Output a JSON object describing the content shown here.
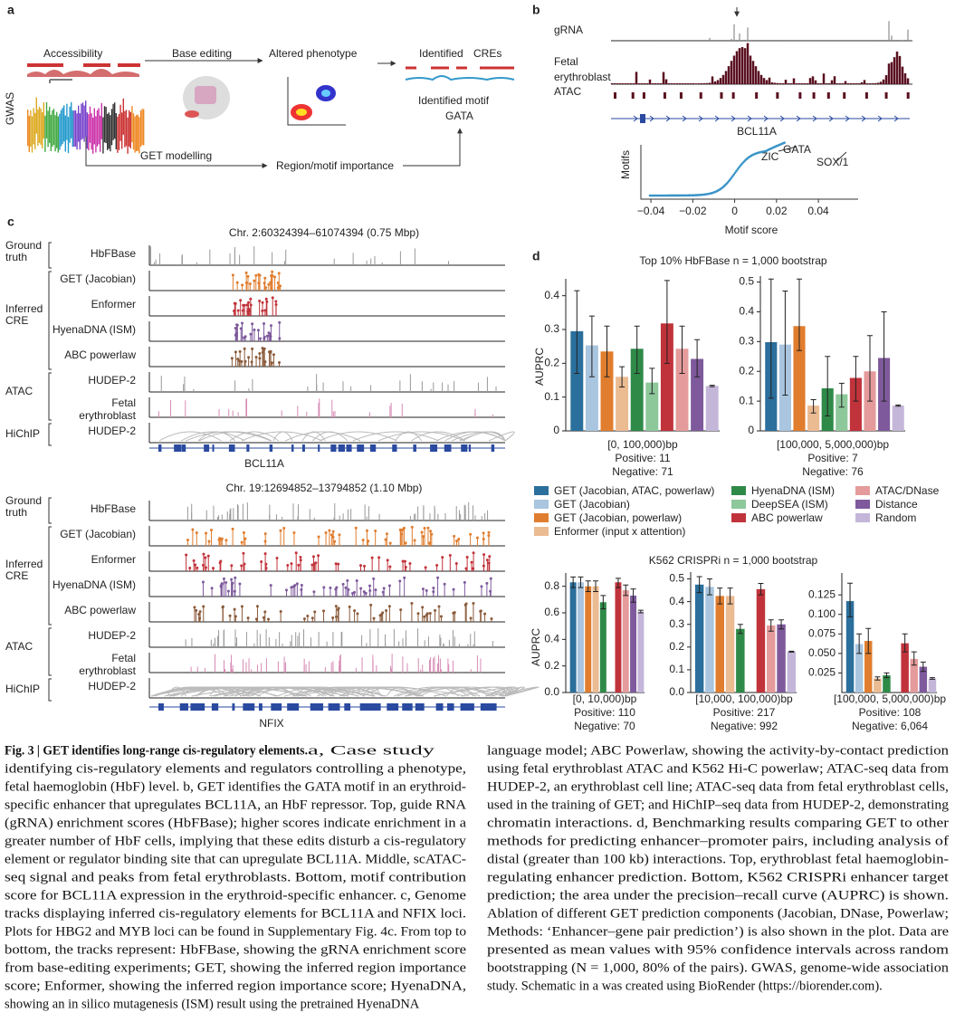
{
  "panel_a": {
    "letter": "a",
    "accessibility": "Accessibility",
    "base_editing": "Base editing",
    "altered_phenotype": "Altered phenotype",
    "identified": "Identified",
    "cres": "CREs",
    "gwas": "GWAS",
    "identified_motif": "Identified motif",
    "gata": "GATA",
    "get_modelling": "GET modelling",
    "region_motif": "Region/motif importance"
  },
  "panel_b": {
    "letter": "b",
    "grna": "gRNA",
    "fetal": "Fetal",
    "erythroblast": "erythroblast",
    "atac": "ATAC",
    "gene": "BCL11A",
    "y_label": "Motifs",
    "x_label": "Motif score",
    "zic": "ZIC",
    "gata": "GATA",
    "sox": "SOX/1",
    "xlim": [
      -0.0448,
      0.059
    ],
    "xticks": [
      {
        "value": -0.04,
        "label": "−0.04"
      },
      {
        "value": -0.02,
        "label": "−0.02"
      },
      0,
      0.02,
      0.04
    ]
  },
  "panel_c": {
    "letter": "c",
    "groups": [
      [
        "Ground",
        "truth"
      ],
      [
        "Inferred",
        "CRE"
      ],
      [
        "ATAC"
      ],
      [
        "HiChIP"
      ]
    ],
    "tracks": [
      "HbFBase",
      "GET (Jacobian)",
      "Enformer",
      "HyenaDNA (ISM)",
      "ABC powerlaw",
      "HUDEP-2",
      [
        "Fetal",
        "erythroblast"
      ],
      "HUDEP-2"
    ],
    "loci": [
      {
        "title": "Chr. 2:60324394–61074394 (0.75 Mbp)",
        "gene": "BCL11A"
      },
      {
        "title": "Chr. 19:12694852–13794852 (1.10 Mbp)",
        "gene": "NFIX"
      }
    ]
  },
  "panel_d": {
    "letter": "d",
    "top_title": "Top 10% HbFBase n = 1,000 bootstrap",
    "bottom_title": "K562 CRISPRi n = 1,000 bootstrap",
    "y_label": "AUPRC",
    "legend": [
      {
        "name": "GET (Jacobian, ATAC, powerlaw)",
        "color": "#2b6f9c"
      },
      {
        "name": "GET (Jacobian)",
        "color": "#a9c5df"
      },
      {
        "name": "GET (Jacobian, powerlaw)",
        "color": "#e07d2e"
      },
      {
        "name": "Enformer (input x attention)",
        "color": "#ebbb92"
      },
      {
        "name": "HyenaDNA (ISM)",
        "color": "#2f8a48"
      },
      {
        "name": "DeepSEA (ISM)",
        "color": "#8dc89b"
      },
      {
        "name": "ABC powerlaw",
        "color": "#c1333b"
      },
      {
        "name": "ATAC/DNase",
        "color": "#e59b9b"
      },
      {
        "name": "Distance",
        "color": "#7e5a9c"
      },
      {
        "name": "Random",
        "color": "#c4b6d9"
      }
    ],
    "charts": [
      {
        "type": "bar",
        "x_label": [
          "[0, 100,000)bp",
          "Positive: 11",
          "Negative: 71"
        ],
        "ylim": [
          0,
          0.45
        ],
        "yticks": [
          0,
          0.1,
          0.2,
          0.3,
          0.4
        ],
        "values": [
          0.295,
          0.253,
          0.235,
          0.16,
          0.243,
          0.143,
          0.318,
          0.243,
          0.213,
          0.133
        ],
        "ci": [
          [
            0.17,
            0.415
          ],
          [
            0.16,
            0.34
          ],
          [
            0.16,
            0.31
          ],
          [
            0.13,
            0.19
          ],
          [
            0.17,
            0.31
          ],
          [
            0.11,
            0.185
          ],
          [
            0.2,
            0.445
          ],
          [
            0.17,
            0.31
          ],
          [
            0.16,
            0.27
          ],
          [
            0.131,
            0.135
          ]
        ]
      },
      {
        "type": "bar",
        "x_label": [
          "[100,000, 5,000,000)bp",
          "Positive: 7",
          "Negative: 76"
        ],
        "ylim": [
          0,
          0.52
        ],
        "yticks": [
          0,
          0.1,
          0.2,
          0.3,
          0.4,
          0.5
        ],
        "values": [
          0.298,
          0.29,
          0.352,
          0.085,
          0.143,
          0.123,
          0.178,
          0.2,
          0.245,
          0.085
        ],
        "ci": [
          [
            0.11,
            0.51
          ],
          [
            0.12,
            0.47
          ],
          [
            0.27,
            0.51
          ],
          [
            0.06,
            0.105
          ],
          [
            0.05,
            0.25
          ],
          [
            0.08,
            0.16
          ],
          [
            0.1,
            0.25
          ],
          [
            0.1,
            0.32
          ],
          [
            0.1,
            0.4
          ],
          [
            0.083,
            0.087
          ]
        ]
      },
      {
        "type": "bar",
        "x_label": [
          "[0, 10,000)bp",
          "Positive: 110",
          "Negative: 70"
        ],
        "ylim": [
          0,
          0.9
        ],
        "yticks": [
          {
            "value": 0,
            "label": "0.0"
          },
          0.2,
          0.4,
          0.6,
          0.8
        ],
        "values": [
          0.83,
          0.83,
          0.8,
          0.8,
          0.68,
          null,
          0.83,
          0.77,
          0.73,
          0.61
        ],
        "ci": [
          [
            0.79,
            0.87
          ],
          [
            0.79,
            0.87
          ],
          [
            0.76,
            0.84
          ],
          [
            0.76,
            0.84
          ],
          [
            0.63,
            0.73
          ],
          null,
          [
            0.79,
            0.86
          ],
          [
            0.73,
            0.81
          ],
          [
            0.68,
            0.78
          ],
          [
            0.6,
            0.62
          ]
        ]
      },
      {
        "type": "bar",
        "x_label": [
          "[10,000, 100,000)bp",
          "Positive: 217",
          "Negative: 992"
        ],
        "ylim": [
          0,
          0.53
        ],
        "yticks": [
          {
            "value": 0,
            "label": "0.0"
          },
          0.1,
          0.2,
          0.3,
          0.4,
          0.5
        ],
        "values": [
          0.475,
          0.465,
          0.425,
          0.425,
          0.28,
          null,
          0.455,
          0.295,
          0.3,
          0.18
        ],
        "ci": [
          [
            0.44,
            0.51
          ],
          [
            0.43,
            0.5
          ],
          [
            0.39,
            0.46
          ],
          [
            0.39,
            0.46
          ],
          [
            0.26,
            0.3
          ],
          null,
          [
            0.43,
            0.48
          ],
          [
            0.27,
            0.32
          ],
          [
            0.28,
            0.32
          ],
          [
            0.178,
            0.182
          ]
        ]
      },
      {
        "type": "bar",
        "x_label": [
          "[100,000, 5,000,000)bp",
          "Positive: 108",
          "Negative: 6,064"
        ],
        "ylim": [
          0,
          0.153
        ],
        "yticks": [
          0.025,
          {
            "value": 0.05,
            "label": "0.050"
          },
          0.075,
          {
            "value": 0.1,
            "label": "0.100"
          },
          0.125
        ],
        "values": [
          0.117,
          0.062,
          0.066,
          0.018,
          0.022,
          null,
          0.063,
          0.043,
          0.033,
          0.018
        ],
        "ci": [
          [
            0.097,
            0.14
          ],
          [
            0.05,
            0.075
          ],
          [
            0.05,
            0.082
          ],
          [
            0.016,
            0.02
          ],
          [
            0.019,
            0.025
          ],
          null,
          [
            0.052,
            0.075
          ],
          [
            0.035,
            0.052
          ],
          [
            0.027,
            0.039
          ],
          [
            0.017,
            0.019
          ]
        ]
      }
    ]
  },
  "caption": {
    "title": "Fig. 3 | GET identifies long-range cis-regulatory elements.",
    "left": [
      " a, Case study",
      "identifying cis-regulatory elements and regulators controlling a phenotype,",
      "fetal haemoglobin (HbF) level. b, GET identifies the GATA motif in an erythroid-",
      "specific enhancer that upregulates BCL11A, an HbF repressor. Top, guide RNA",
      "(gRNA) enrichment scores (HbFBase); higher scores indicate enrichment in a",
      "greater number of HbF cells, implying that these edits disturb a cis-regulatory",
      "element or regulator binding site that can upregulate BCL11A. Middle, scATAC-",
      "seq signal and peaks from fetal erythroblasts. Bottom, motif contribution",
      "score for BCL11A expression in the erythroid-specific enhancer. c, Genome",
      "tracks displaying inferred cis-regulatory elements for BCL11A and NFIX loci.",
      "Plots for HBG2 and MYB loci can be found in Supplementary Fig. 4c. From top to",
      "bottom, the tracks represent: HbFBase, showing the gRNA enrichment score",
      "from base-editing experiments; GET, showing the inferred region importance",
      "score; Enformer, showing the inferred region importance score; HyenaDNA,",
      "showing an in silico mutagenesis (ISM) result using the pretrained HyenaDNA"
    ],
    "right": [
      "language model; ABC Powerlaw, showing the activity-by-contact prediction",
      "using fetal erythroblast ATAC and K562 Hi-C powerlaw; ATAC-seq data from",
      "HUDEP-2, an erythroblast cell line; ATAC-seq data from fetal erythroblast cells,",
      "used in the training of GET; and HiChIP–seq data from HUDEP-2, demonstrating",
      "chromatin interactions. d, Benchmarking results comparing GET to other",
      "methods for predicting enhancer–promoter pairs, including analysis of",
      "distal (greater than 100 kb) interactions. Top, erythroblast fetal haemoglobin-",
      "regulating enhancer prediction. Bottom, K562 CRISPRi enhancer target",
      "prediction; the area under the precision–recall curve (AUPRC) is shown.",
      "Ablation of different GET prediction components (Jacobian, DNase, Powerlaw;",
      "Methods: ‘Enhancer–gene pair prediction’) is also shown in the plot. Data are",
      "presented as mean values with 95% confidence intervals across random",
      "bootstrapping (N = 1,000, 80% of the pairs). GWAS, genome-wide association",
      "study. Schematic in a was created using BioRender (https://biorender.com)."
    ]
  }
}
